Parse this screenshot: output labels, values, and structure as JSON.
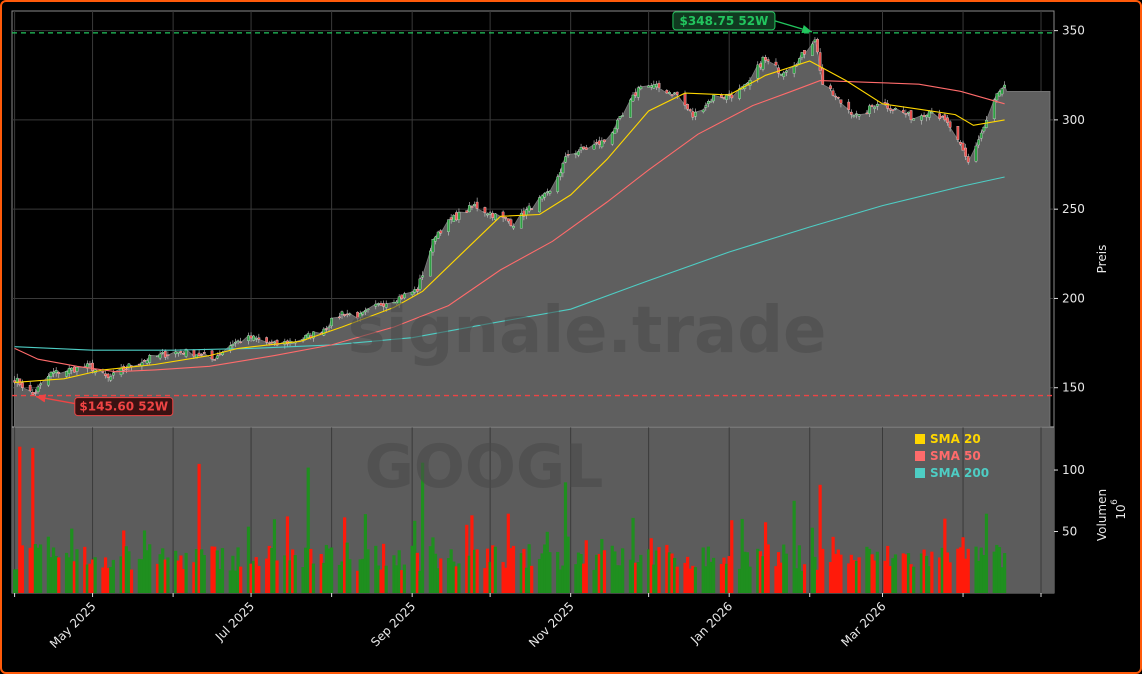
{
  "chart_data": {
    "type": "candlestick",
    "symbol": "GOOGL",
    "watermark": "signale.trade",
    "x_tick_labels": [
      "May 2025",
      "Jul 2025",
      "Sep 2025",
      "Nov 2025",
      "Jan 2026",
      "Mar 2026"
    ],
    "price_axis": {
      "label": "Preis",
      "ylim": [
        128,
        361
      ],
      "ticks": [
        150,
        200,
        250,
        300,
        350
      ]
    },
    "volume_axis": {
      "label": "Volumen",
      "exponent_label": "10",
      "exponent": "6",
      "ylim": [
        0,
        135
      ],
      "ticks": [
        50,
        100
      ]
    },
    "annotations": {
      "high": {
        "label": "$348.75 52W",
        "value": 348.75,
        "date": "2026-02-03",
        "color": "#22c55e"
      },
      "low": {
        "label": "$145.60 52W",
        "value": 145.6,
        "date": "2025-04-08",
        "color": "#ef4444"
      }
    },
    "legend": {
      "position": "top-right of volume panel",
      "items": [
        {
          "label": "SMA 20",
          "color": "#ffd700"
        },
        {
          "label": "SMA 50",
          "color": "#ff6b6b"
        },
        {
          "label": "SMA 200",
          "color": "#4ecdc4"
        }
      ]
    },
    "anchors": {
      "close": [
        [
          "2025-04-01",
          155
        ],
        [
          "2025-04-08",
          146
        ],
        [
          "2025-04-15",
          158
        ],
        [
          "2025-04-22",
          160
        ],
        [
          "2025-04-30",
          162
        ],
        [
          "2025-05-07",
          155
        ],
        [
          "2025-05-15",
          162
        ],
        [
          "2025-05-22",
          166
        ],
        [
          "2025-06-01",
          170
        ],
        [
          "2025-06-08",
          170
        ],
        [
          "2025-06-16",
          166
        ],
        [
          "2025-06-24",
          175
        ],
        [
          "2025-07-01",
          178
        ],
        [
          "2025-07-10",
          174
        ],
        [
          "2025-07-20",
          177
        ],
        [
          "2025-07-28",
          182
        ],
        [
          "2025-08-05",
          192
        ],
        [
          "2025-08-12",
          190
        ],
        [
          "2025-08-20",
          197
        ],
        [
          "2025-08-28",
          201
        ],
        [
          "2025-09-03",
          205
        ],
        [
          "2025-09-10",
          236
        ],
        [
          "2025-09-17",
          245
        ],
        [
          "2025-09-25",
          252
        ],
        [
          "2025-10-02",
          247
        ],
        [
          "2025-10-10",
          242
        ],
        [
          "2025-10-18",
          253
        ],
        [
          "2025-10-24",
          259
        ],
        [
          "2025-10-31",
          281
        ],
        [
          "2025-11-07",
          284
        ],
        [
          "2025-11-14",
          288
        ],
        [
          "2025-11-21",
          302
        ],
        [
          "2025-11-28",
          320
        ],
        [
          "2025-12-05",
          318
        ],
        [
          "2025-12-12",
          314
        ],
        [
          "2025-12-18",
          302
        ],
        [
          "2025-12-26",
          313
        ],
        [
          "2026-01-02",
          314
        ],
        [
          "2026-01-08",
          319
        ],
        [
          "2026-01-14",
          334
        ],
        [
          "2026-01-21",
          327
        ],
        [
          "2026-01-28",
          334
        ],
        [
          "2026-02-03",
          346
        ],
        [
          "2026-02-06",
          320
        ],
        [
          "2026-02-12",
          311
        ],
        [
          "2026-02-20",
          301
        ],
        [
          "2026-02-27",
          310
        ],
        [
          "2026-03-06",
          306
        ],
        [
          "2026-03-13",
          301
        ],
        [
          "2026-03-20",
          306
        ],
        [
          "2026-03-27",
          296
        ],
        [
          "2026-04-03",
          276
        ],
        [
          "2026-04-09",
          296
        ],
        [
          "2026-04-14",
          314
        ],
        [
          "2026-04-17",
          318
        ]
      ],
      "sma20": [
        [
          "2025-04-01",
          153
        ],
        [
          "2025-04-20",
          155
        ],
        [
          "2025-05-05",
          160
        ],
        [
          "2025-05-25",
          163
        ],
        [
          "2025-06-15",
          168
        ],
        [
          "2025-06-26",
          172
        ],
        [
          "2025-07-20",
          176
        ],
        [
          "2025-08-05",
          184
        ],
        [
          "2025-08-25",
          195
        ],
        [
          "2025-09-05",
          204
        ],
        [
          "2025-09-20",
          225
        ],
        [
          "2025-10-05",
          246
        ],
        [
          "2025-10-20",
          247
        ],
        [
          "2025-11-01",
          258
        ],
        [
          "2025-11-15",
          278
        ],
        [
          "2025-12-01",
          305
        ],
        [
          "2025-12-15",
          315
        ],
        [
          "2026-01-01",
          314
        ],
        [
          "2026-01-15",
          325
        ],
        [
          "2026-02-01",
          333
        ],
        [
          "2026-02-15",
          322
        ],
        [
          "2026-03-01",
          309
        ],
        [
          "2026-03-15",
          306
        ],
        [
          "2026-03-29",
          303
        ],
        [
          "2026-04-05",
          297
        ],
        [
          "2026-04-17",
          300
        ]
      ],
      "sma50": [
        [
          "2025-04-01",
          172
        ],
        [
          "2025-04-10",
          166
        ],
        [
          "2025-04-25",
          162
        ],
        [
          "2025-05-10",
          159
        ],
        [
          "2025-05-25",
          160
        ],
        [
          "2025-06-15",
          162
        ],
        [
          "2025-07-10",
          168
        ],
        [
          "2025-08-01",
          174
        ],
        [
          "2025-08-25",
          184
        ],
        [
          "2025-09-15",
          196
        ],
        [
          "2025-10-05",
          216
        ],
        [
          "2025-10-25",
          232
        ],
        [
          "2025-11-15",
          254
        ],
        [
          "2025-12-01",
          272
        ],
        [
          "2025-12-20",
          292
        ],
        [
          "2026-01-10",
          308
        ],
        [
          "2026-01-25",
          316
        ],
        [
          "2026-02-05",
          322
        ],
        [
          "2026-02-25",
          321
        ],
        [
          "2026-03-15",
          320
        ],
        [
          "2026-03-31",
          316
        ],
        [
          "2026-04-17",
          309
        ]
      ],
      "sma200": [
        [
          "2025-04-01",
          173
        ],
        [
          "2025-05-01",
          171
        ],
        [
          "2025-06-01",
          171
        ],
        [
          "2025-07-01",
          172
        ],
        [
          "2025-08-01",
          174
        ],
        [
          "2025-09-01",
          178
        ],
        [
          "2025-10-01",
          186
        ],
        [
          "2025-11-01",
          194
        ],
        [
          "2025-12-01",
          210
        ],
        [
          "2026-01-01",
          226
        ],
        [
          "2026-02-01",
          240
        ],
        [
          "2026-03-01",
          252
        ],
        [
          "2026-04-01",
          263
        ],
        [
          "2026-04-17",
          268
        ]
      ]
    },
    "vol_spikes": [
      [
        "2025-04-03",
        119
      ],
      [
        "2025-04-08",
        118
      ],
      [
        "2025-06-11",
        105
      ],
      [
        "2025-07-23",
        102
      ],
      [
        "2025-09-05",
        106
      ],
      [
        "2025-10-30",
        90
      ],
      [
        "2026-02-05",
        88
      ],
      [
        "2026-01-26",
        75
      ]
    ]
  }
}
